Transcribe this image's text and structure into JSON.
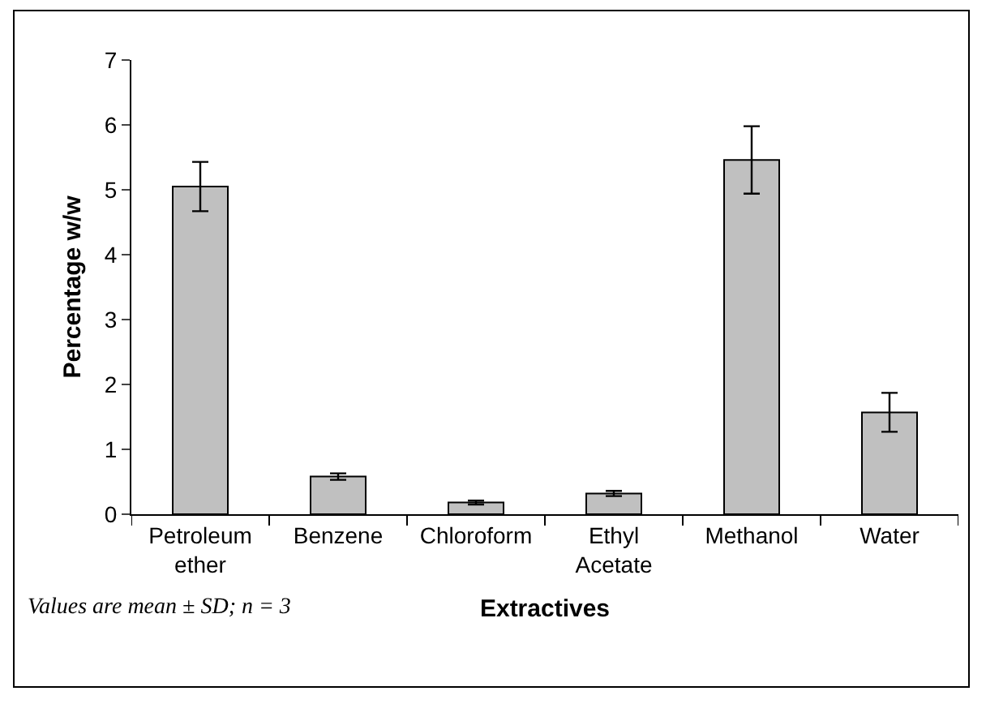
{
  "chart_data": {
    "type": "bar",
    "xlabel": "Extractives",
    "ylabel": "Percentage w/w",
    "categories": [
      "Petroleum ether",
      "Benzene",
      "Chloroform",
      "Ethyl Acetate",
      "Methanol",
      "Water"
    ],
    "values": [
      5.05,
      0.58,
      0.18,
      0.32,
      5.46,
      1.57
    ],
    "errors": [
      0.38,
      0.05,
      0.03,
      0.04,
      0.52,
      0.3
    ],
    "color": "#c0c0c0",
    "ylim": [
      0,
      7
    ],
    "yticks": [
      0,
      1,
      2,
      3,
      4,
      5,
      6,
      7
    ],
    "grid": false,
    "annotations": [
      "Values are mean ± SD; n = 3"
    ]
  }
}
